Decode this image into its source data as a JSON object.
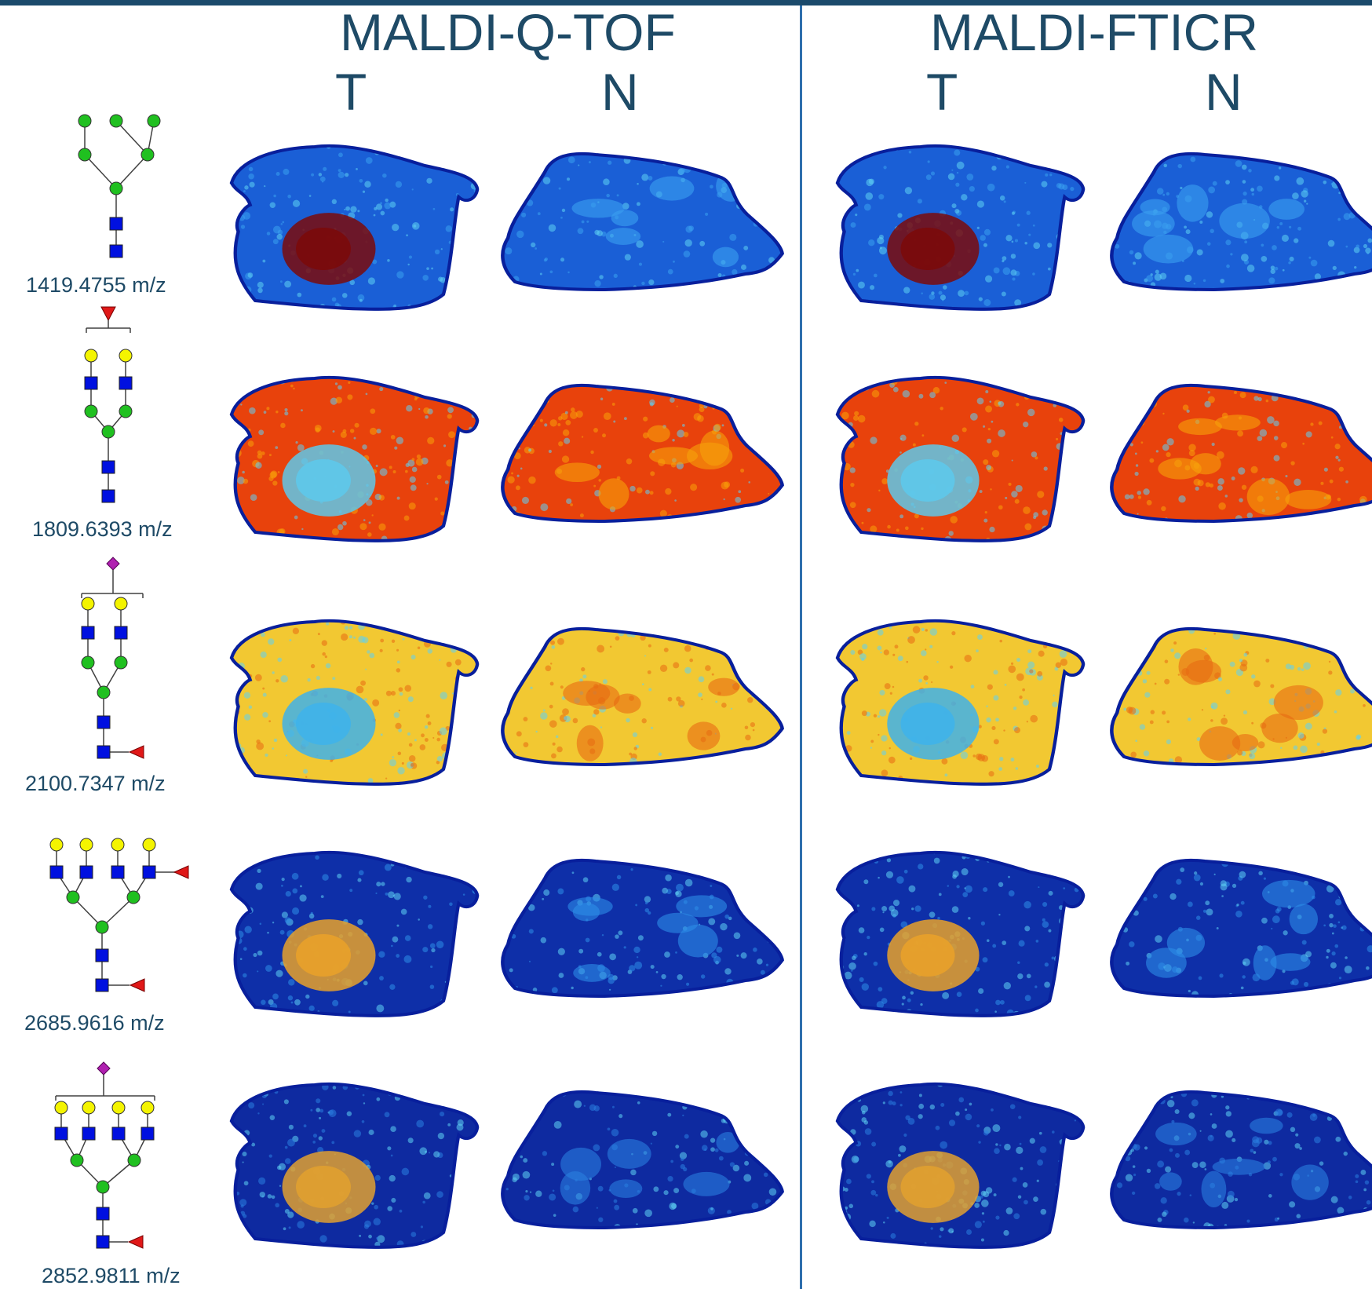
{
  "groups": [
    {
      "title": "MALDI-Q-TOF",
      "columns": [
        "T",
        "N"
      ]
    },
    {
      "title": "MALDI-FTICR",
      "columns": [
        "T",
        "N"
      ]
    }
  ],
  "rows": [
    {
      "mz": "1419.4755 m/z",
      "glycan_icon": "high-mannose-glycan-icon",
      "colors": {
        "bg": "#1a5fd6",
        "mid": "#3aa0f0",
        "hot": "#7b0a0a"
      }
    },
    {
      "mz": "1809.6393 m/z",
      "glycan_icon": "fucosylated-biantennary-glycan-icon",
      "colors": {
        "bg": "#e8420c",
        "mid": "#f7a20a",
        "hot": "#5ec8ea"
      }
    },
    {
      "mz": "2100.7347 m/z",
      "glycan_icon": "sialylated-biantennary-glycan-icon",
      "colors": {
        "bg": "#f2c832",
        "mid": "#e86a12",
        "hot": "#3fb2ea"
      }
    },
    {
      "mz": "2685.9616 m/z",
      "glycan_icon": "tetraantennary-glycan-icon",
      "colors": {
        "bg": "#0e2fa8",
        "mid": "#2d8ee8",
        "hot": "#e8a12a"
      }
    },
    {
      "mz": "2852.9811 m/z",
      "glycan_icon": "sialylated-tetraantennary-glycan-icon",
      "colors": {
        "bg": "#0e2aa0",
        "mid": "#2a7ee0",
        "hot": "#e0a030"
      }
    }
  ],
  "colormap": {
    "low": "#081f9c",
    "blue": "#1f63dd",
    "cyan": "#5fd2f4",
    "yellow": "#f6e33a",
    "orange": "#ef7d12",
    "red": "#c41a08",
    "dark": "#6a0606"
  },
  "glycan_colors": {
    "mannose": "#20c020",
    "galactose": "#f4f400",
    "glcnac": "#0010e0",
    "fucose": "#e01818",
    "neuac": "#b020b0",
    "link": "#404040"
  }
}
